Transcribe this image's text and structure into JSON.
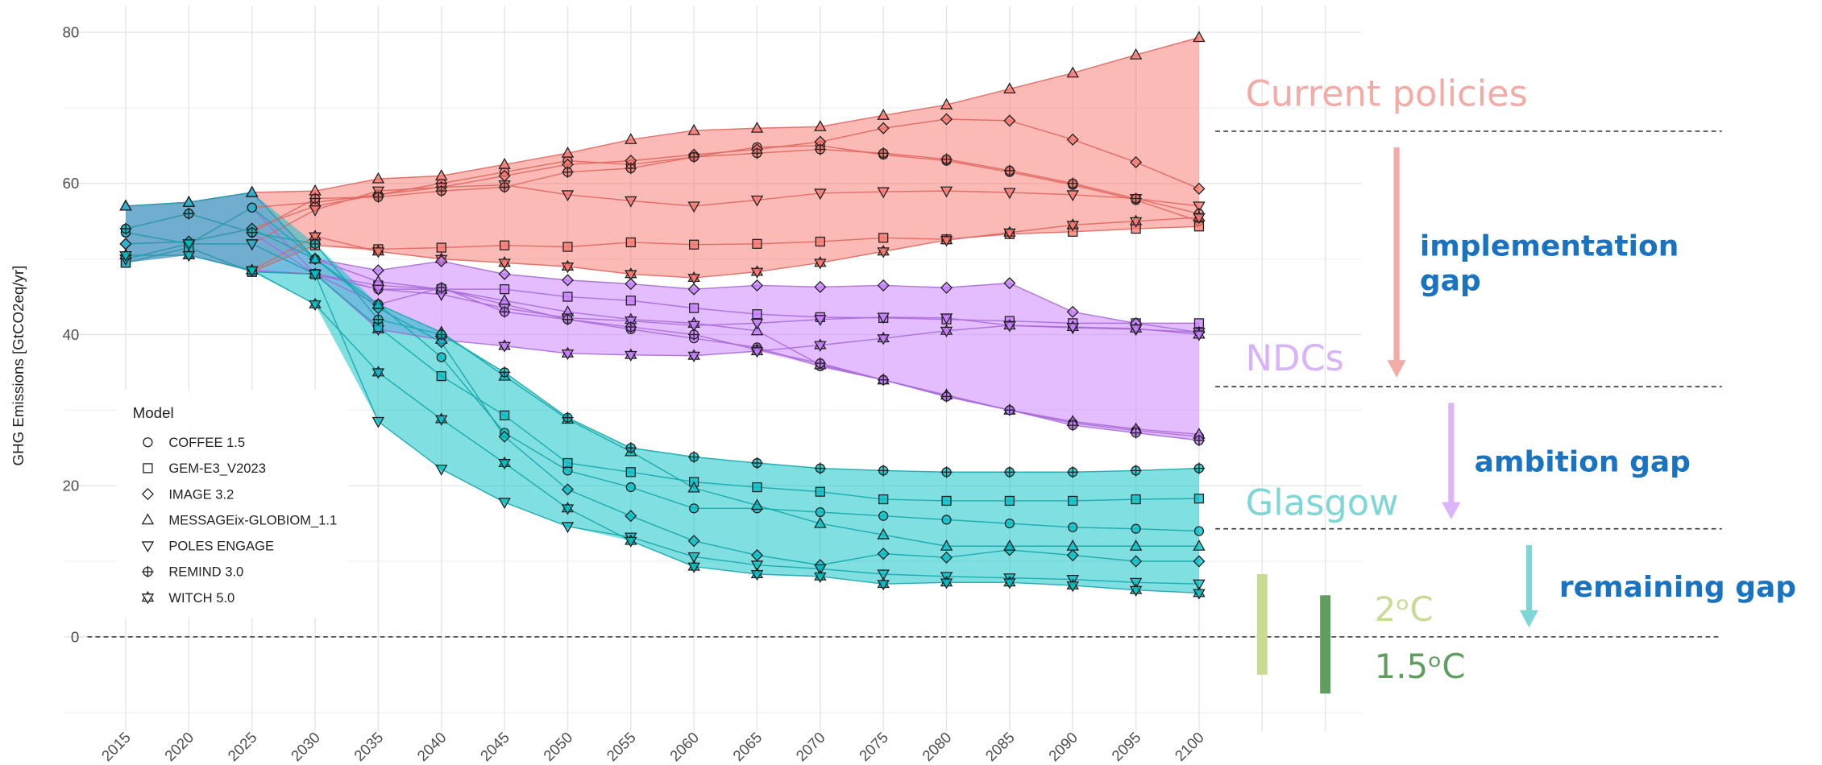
{
  "chart_data": {
    "type": "line",
    "y_label": "GHG Emissions [GtCO2eq/yr]",
    "categories": [
      "2015",
      "2020",
      "2025",
      "2030",
      "2035",
      "2040",
      "2045",
      "2050",
      "2055",
      "2060",
      "2065",
      "2070",
      "2075",
      "2080",
      "2085",
      "2090",
      "2095",
      "2100",
      null,
      null
    ],
    "ylim": [
      -12.5,
      83.5
    ],
    "yticks": [
      0,
      20,
      40,
      60,
      80
    ],
    "yticks_minor": [
      -10,
      10,
      30,
      50,
      70
    ],
    "grid": true,
    "reference_line": 0,
    "legend": {
      "title": "Model",
      "position": "left"
    },
    "models": [
      {
        "name": "COFFEE 1.5",
        "marker": "circle"
      },
      {
        "name": "GEM-E3_V2023",
        "marker": "square"
      },
      {
        "name": "IMAGE 3.2",
        "marker": "diamond"
      },
      {
        "name": "MESSAGEix-GLOBIOM_1.1",
        "marker": "triangle"
      },
      {
        "name": "POLES ENGAGE",
        "marker": "triangle-down"
      },
      {
        "name": "REMIND 3.0",
        "marker": "circle-plus"
      },
      {
        "name": "WITCH 5.0",
        "marker": "hexagram"
      }
    ],
    "scenarios": [
      {
        "name": "Current policies",
        "color": "#f8766d",
        "label_color": "#f4aaa5",
        "level": 66.9,
        "series": [
          {
            "values": [
              53.5,
              52,
              56.8,
              57.5,
              58.5,
              60,
              61.5,
              63,
              62.5,
              63.5,
              64.8,
              65,
              63.8,
              63,
              61.5,
              59.8,
              57.8,
              55,
              null,
              null
            ]
          },
          {
            "values": [
              49.5,
              51.5,
              48.3,
              51.8,
              51.3,
              51.5,
              51.8,
              51.6,
              52.2,
              51.9,
              52,
              52.3,
              52.8,
              52.6,
              53.3,
              53.6,
              54,
              54.3,
              null,
              null
            ]
          },
          {
            "values": [
              52,
              52.3,
              54,
              57,
              58.5,
              59.5,
              61,
              62.5,
              63,
              63.8,
              64.5,
              65.5,
              67.3,
              68.5,
              68.3,
              65.8,
              62.8,
              59.3,
              null,
              null
            ]
          },
          {
            "values": [
              57,
              57.5,
              58.8,
              59,
              60.6,
              61,
              62.5,
              64,
              65.8,
              67,
              67.3,
              67.5,
              69,
              70.4,
              72.5,
              74.6,
              77,
              79.3,
              null,
              null
            ]
          },
          {
            "values": [
              50,
              52,
              52,
              56.5,
              59,
              59.5,
              59.8,
              58.5,
              57.7,
              57,
              57.8,
              58.7,
              58.9,
              59,
              58.8,
              58.5,
              58,
              57,
              null,
              null
            ]
          },
          {
            "values": [
              54,
              56,
              53.5,
              58,
              58.2,
              59,
              59.5,
              61.5,
              62,
              63.5,
              64,
              64.5,
              64,
              63.2,
              61.7,
              60,
              58,
              56,
              null,
              null
            ]
          },
          {
            "values": [
              50.5,
              50.5,
              48.5,
              53,
              51,
              50,
              49.5,
              49,
              48,
              47.5,
              48.3,
              49.5,
              51,
              52.5,
              53.5,
              54.5,
              55,
              55.5,
              null,
              null
            ]
          }
        ]
      },
      {
        "name": "NDCs",
        "color": "#c77cff",
        "label_color": "#d8b3f8",
        "level": 33.1,
        "series": [
          {
            "values": [
              53.5,
              52,
              56.8,
              48,
              46,
              46,
              44,
              42,
              40.7,
              39.5,
              38.3,
              35.8,
              34,
              31.8,
              30,
              28.3,
              27.3,
              26.5,
              null,
              null
            ]
          },
          {
            "values": [
              49.5,
              51.5,
              48.3,
              48,
              46.5,
              46,
              46,
              45,
              44.5,
              43.5,
              42.7,
              42.3,
              42.2,
              42,
              41.8,
              41.5,
              41.5,
              41.5,
              null,
              null
            ]
          },
          {
            "values": [
              52,
              52.3,
              54,
              50,
              48.5,
              49.7,
              48,
              47.2,
              46.7,
              46,
              46.5,
              46.3,
              46.5,
              46.2,
              46.8,
              43,
              41.5,
              40.3,
              null,
              null
            ]
          },
          {
            "values": [
              57,
              57.5,
              58.8,
              50,
              47,
              46,
              44.5,
              43,
              42,
              41.5,
              40.5,
              36,
              34,
              32,
              30,
              28.5,
              27.5,
              26.8,
              null,
              null
            ]
          },
          {
            "values": [
              50,
              52,
              52,
              48,
              46,
              45.3,
              43.5,
              42.2,
              41.8,
              41.2,
              41.5,
              42,
              42.3,
              42.2,
              41.2,
              40.9,
              40.7,
              40.3,
              null,
              null
            ]
          },
          {
            "values": [
              54,
              56,
              53.5,
              48,
              44,
              46.2,
              43,
              42,
              41,
              40,
              38,
              36.2,
              34,
              31.8,
              30,
              28,
              27,
              26,
              null,
              null
            ]
          },
          {
            "values": [
              50.5,
              50.5,
              48.5,
              48,
              40.7,
              39.3,
              38.5,
              37.5,
              37.3,
              37.2,
              37.8,
              38.6,
              39.5,
              40.5,
              41.2,
              41,
              40.8,
              40,
              null,
              null
            ]
          }
        ]
      },
      {
        "name": "Glasgow",
        "color": "#00bfc4",
        "label_color": "#7fd6d6",
        "level": 14.3,
        "series": [
          {
            "values": [
              53.5,
              52,
              56.8,
              50,
              44,
              37,
              27,
              22,
              19.8,
              17,
              17,
              16.5,
              16,
              15.5,
              15,
              14.5,
              14.3,
              14,
              null,
              null
            ]
          },
          {
            "values": [
              49.5,
              51.5,
              48.3,
              48,
              41,
              34.5,
              29.3,
              23,
              21.8,
              20.5,
              19.8,
              19.2,
              18.2,
              18,
              18,
              18,
              18.2,
              18.3,
              null,
              null
            ]
          },
          {
            "values": [
              52,
              52.3,
              54,
              50,
              43.5,
              39,
              26.5,
              19.5,
              16,
              12.7,
              10.8,
              9.5,
              11,
              10.5,
              11.5,
              10.8,
              10,
              10,
              null,
              null
            ]
          },
          {
            "values": [
              57,
              57.5,
              58.8,
              50,
              44,
              40.3,
              34.5,
              28.8,
              24.5,
              19.7,
              17.4,
              15,
              13.5,
              12,
              12,
              12,
              12,
              12,
              null,
              null
            ]
          },
          {
            "values": [
              50,
              52,
              52,
              48,
              28.5,
              22.2,
              17.8,
              14.6,
              13.2,
              10.6,
              9.5,
              9,
              8.3,
              8,
              7.8,
              7.6,
              7.2,
              7,
              null,
              null
            ]
          },
          {
            "values": [
              54,
              56,
              53.5,
              52,
              42,
              40,
              35,
              29,
              25,
              23.8,
              23,
              22.3,
              22,
              21.8,
              21.8,
              21.8,
              22,
              22.3,
              null,
              null
            ]
          },
          {
            "values": [
              50.5,
              50.5,
              48.5,
              44,
              35,
              28.8,
              23,
              17,
              12.7,
              9.3,
              8.3,
              8,
              7,
              7.2,
              7.2,
              6.8,
              6.2,
              5.8,
              null,
              null
            ]
          }
        ]
      }
    ],
    "gaps": [
      {
        "lines": [
          "implementation",
          "gap"
        ],
        "color": "#f4aaa5"
      },
      {
        "lines": [
          "ambition gap"
        ],
        "color": "#dcb4fb"
      },
      {
        "lines": [
          "remaining gap"
        ],
        "color": "#7fd6d6"
      }
    ],
    "gap_label_color": "#1a73c0",
    "temperature_targets": [
      {
        "label": "2ᵒC",
        "color": "#c5dc92",
        "range": [
          -5,
          8.3
        ]
      },
      {
        "label": "1.5ᵒC",
        "color": "#5f9e5f",
        "range": [
          -7.5,
          5.5
        ]
      }
    ]
  }
}
